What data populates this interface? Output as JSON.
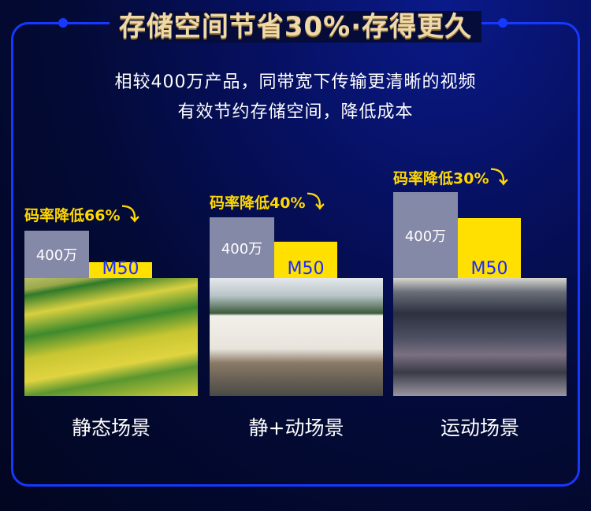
{
  "title": "存储空间节省30%·存得更久",
  "subtitle": [
    "相较400万产品，同带宽下传输更清晰的视频",
    "有效节约存储空间，降低成本"
  ],
  "colors": {
    "border": "#1638ff",
    "bar_old": "#8589a8",
    "bar_new": "#ffe000",
    "rate_text": "#ffd800",
    "title": "#f0d9a8"
  },
  "groups": [
    {
      "rate": "码率降低66%",
      "reduction_percent": 66,
      "old_label": "400万",
      "new_label": "M50",
      "scene": "静态场景",
      "photo": "farmland-photo"
    },
    {
      "rate": "码率降低40%",
      "reduction_percent": 40,
      "old_label": "400万",
      "new_label": "M50",
      "scene": "静+动场景",
      "photo": "house-photo"
    },
    {
      "rate": "码率降低30%",
      "reduction_percent": 30,
      "old_label": "400万",
      "new_label": "M50",
      "scene": "运动场景",
      "photo": "crowd-photo"
    }
  ]
}
